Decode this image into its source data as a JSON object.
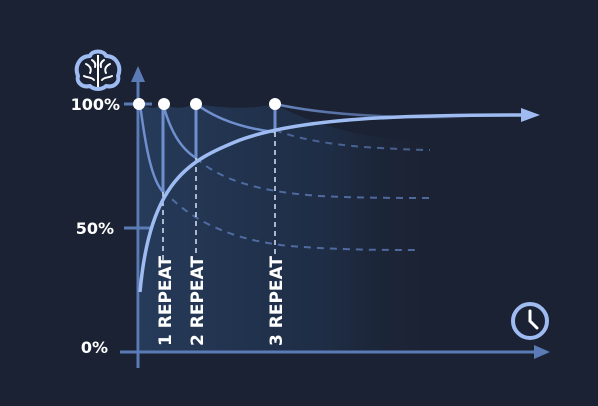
{
  "y_labels": {
    "top": "100%",
    "mid": "50%",
    "bottom": "0%"
  },
  "repeats": [
    {
      "label": "1 REPEAT"
    },
    {
      "label": "2 REPEAT"
    },
    {
      "label": "3 REPEAT"
    }
  ],
  "icons": {
    "top": "brain-icon",
    "right": "clock-icon"
  },
  "colors": {
    "background": "#1b2233",
    "axis": "#5b7bb6",
    "curve": "#9fbcf2",
    "marker": "#ffffff",
    "text": "#ffffff"
  }
}
